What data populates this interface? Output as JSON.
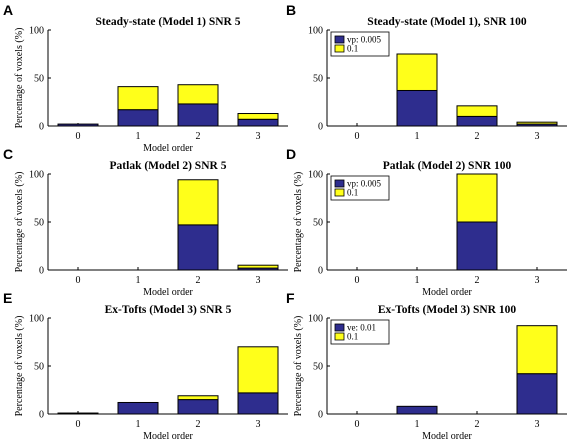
{
  "colors": {
    "series1": "#2e2d8e",
    "series2": "#ffff1a",
    "edge": "#000000"
  },
  "chart_data": [
    {
      "letter": "A",
      "type": "bar",
      "title": "Steady-state (Model 1) SNR 5",
      "xlabel": "Model order",
      "ylabel": "Percentage of voxels (%)",
      "categories": [
        "0",
        "1",
        "2",
        "3"
      ],
      "ylim": [
        0,
        100
      ],
      "yticks": [
        "0",
        "50",
        "100"
      ],
      "stacked": true,
      "series": [
        {
          "values": [
            2,
            17,
            23,
            7
          ]
        },
        {
          "values": [
            0,
            24,
            20,
            6
          ]
        }
      ],
      "legend": null
    },
    {
      "letter": "B",
      "type": "bar",
      "title": "Steady-state (Model 1), SNR 100",
      "xlabel": "",
      "ylabel": "",
      "categories": [
        "0",
        "1",
        "2",
        "3"
      ],
      "ylim": [
        0,
        100
      ],
      "yticks": [
        "0",
        "50",
        "100"
      ],
      "stacked": true,
      "series": [
        {
          "name": "vp: 0.005",
          "values": [
            0,
            37,
            10,
            2
          ]
        },
        {
          "name": "0.1",
          "values": [
            0,
            38,
            11,
            2
          ]
        }
      ],
      "legend": "top-left"
    },
    {
      "letter": "C",
      "type": "bar",
      "title": "Patlak (Model 2) SNR 5",
      "xlabel": "Model order",
      "ylabel": "Percentage of voxels (%)",
      "categories": [
        "0",
        "1",
        "2",
        "3"
      ],
      "ylim": [
        0,
        100
      ],
      "yticks": [
        "0",
        "50",
        "100"
      ],
      "stacked": true,
      "series": [
        {
          "values": [
            0,
            0,
            47,
            2
          ]
        },
        {
          "values": [
            0,
            0,
            47,
            3
          ]
        }
      ],
      "legend": null
    },
    {
      "letter": "D",
      "type": "bar",
      "title": "Patlak (Model 2) SNR 100",
      "xlabel": "Model order",
      "ylabel": "Percentage of voxels (%)",
      "categories": [
        "0",
        "1",
        "2",
        "3"
      ],
      "ylim": [
        0,
        100
      ],
      "yticks": [
        "0",
        "50",
        "100"
      ],
      "stacked": true,
      "series": [
        {
          "name": "vp: 0.005",
          "values": [
            0,
            0,
            50,
            0
          ]
        },
        {
          "name": "0.1",
          "values": [
            0,
            0,
            50,
            0
          ]
        }
      ],
      "legend": "top-left"
    },
    {
      "letter": "E",
      "type": "bar",
      "title": "Ex-Tofts (Model 3) SNR 5",
      "xlabel": "Model order",
      "ylabel": "Percentage of voxels (%)",
      "categories": [
        "0",
        "1",
        "2",
        "3"
      ],
      "ylim": [
        0,
        100
      ],
      "yticks": [
        "0",
        "50",
        "100"
      ],
      "stacked": true,
      "series": [
        {
          "values": [
            1,
            12,
            15,
            22
          ]
        },
        {
          "values": [
            0,
            0,
            4,
            48
          ]
        }
      ],
      "legend": null
    },
    {
      "letter": "F",
      "type": "bar",
      "title": "Ex-Tofts (Model 3) SNR 100",
      "xlabel": "Model order",
      "ylabel": "Percentage of voxels (%)",
      "categories": [
        "0",
        "1",
        "2",
        "3"
      ],
      "ylim": [
        0,
        100
      ],
      "yticks": [
        "0",
        "50",
        "100"
      ],
      "stacked": true,
      "series": [
        {
          "name": "ve: 0.01",
          "values": [
            0,
            8,
            0,
            42
          ]
        },
        {
          "name": "0.1",
          "values": [
            0,
            0,
            0,
            50
          ]
        }
      ],
      "legend": "top-left"
    }
  ]
}
